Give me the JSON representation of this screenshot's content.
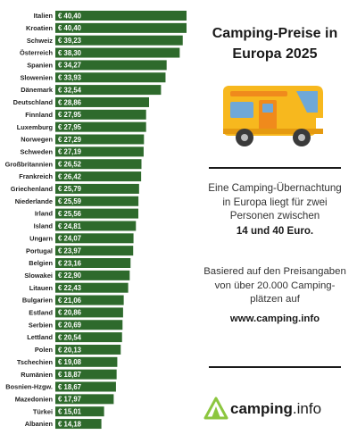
{
  "title": "Camping-Preise in Europa 2025",
  "description": {
    "lead": "Eine Camping-Übernachtung in Europa liegt für zwei Personen zwischen",
    "range": "14 und 40 Euro."
  },
  "source": {
    "text": "Basiered auf den Preisangaben von über 20.000 Camping-plätzen auf",
    "site": "www.camping.info"
  },
  "logo": {
    "name": "camping",
    "suffix": ".info",
    "icon": "tent-icon"
  },
  "vehicle_icon": "camper-van-icon",
  "colors": {
    "bar": "#2e6a2c",
    "bar_text": "#ffffff",
    "logo": "#8cc63f",
    "van_body": "#f7b81e",
    "van_door": "#f08a1c"
  },
  "chart_data": {
    "type": "bar",
    "orientation": "horizontal",
    "title": "Camping-Preise in Europa 2025",
    "categories": [
      "Italien",
      "Kroatien",
      "Schweiz",
      "Österreich",
      "Spanien",
      "Slowenien",
      "Dänemark",
      "Deutschland",
      "Finnland",
      "Luxemburg",
      "Norwegen",
      "Schweden",
      "Großbritannien",
      "Frankreich",
      "Griechenland",
      "Niederlande",
      "Irland",
      "Island",
      "Ungarn",
      "Portugal",
      "Belgien",
      "Slowakei",
      "Litauen",
      "Bulgarien",
      "Estland",
      "Serbien",
      "Lettland",
      "Polen",
      "Tschechien",
      "Rumänien",
      "Bosnien-Hzgw.",
      "Mazedonien",
      "Türkei",
      "Albanien"
    ],
    "values": [
      40.4,
      40.4,
      39.23,
      38.3,
      34.27,
      33.93,
      32.54,
      28.86,
      27.95,
      27.95,
      27.29,
      27.19,
      26.52,
      26.42,
      25.79,
      25.59,
      25.56,
      24.81,
      24.07,
      23.97,
      23.16,
      22.9,
      22.43,
      21.06,
      20.86,
      20.69,
      20.54,
      20.13,
      19.08,
      18.87,
      18.67,
      17.97,
      15.01,
      14.18
    ],
    "labels": [
      "€ 40,40",
      "€ 40,40",
      "€ 39,23",
      "€ 38,30",
      "€ 34,27",
      "€ 33,93",
      "€ 32,54",
      "€ 28,86",
      "€ 27,95",
      "€ 27,95",
      "€ 27,29",
      "€ 27,19",
      "€ 26,52",
      "€ 26,42",
      "€ 25,79",
      "€ 25,59",
      "€ 25,56",
      "€ 24,81",
      "€ 24,07",
      "€ 23,97",
      "€ 23,16",
      "€ 22,90",
      "€ 22,43",
      "€ 21,06",
      "€ 20,86",
      "€ 20,69",
      "€ 20,54",
      "€ 20,13",
      "€ 19,08",
      "€ 18,87",
      "€ 18,67",
      "€ 17,97",
      "€ 15,01",
      "€ 14,18"
    ],
    "xlim": [
      0,
      40.4
    ],
    "grid": false,
    "legend": "none"
  }
}
